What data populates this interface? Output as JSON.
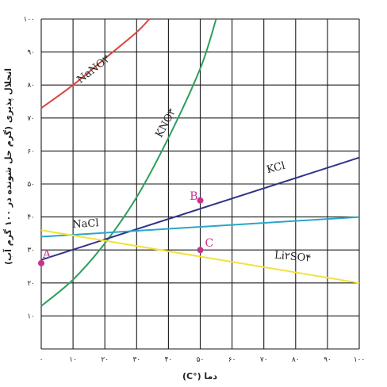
{
  "chart_data": {
    "type": "line",
    "xlabel": "دما (°C)",
    "ylabel": "انحلال پذیری (گرم حل شونده در ۱۰۰ گرم آب)",
    "xlim": [
      0,
      100
    ],
    "ylim": [
      0,
      100
    ],
    "x_ticks": [
      0,
      10,
      20,
      30,
      40,
      50,
      60,
      70,
      80,
      90,
      100
    ],
    "x_tick_labels": [
      "۰",
      "۱۰",
      "۲۰",
      "۳۰",
      "۴۰",
      "۵۰",
      "۶۰",
      "۷۰",
      "۸۰",
      "۹۰",
      "۱۰۰"
    ],
    "y_ticks": [
      10,
      20,
      30,
      40,
      50,
      60,
      70,
      80,
      90,
      100
    ],
    "y_tick_labels": [
      "۱۰",
      "۲۰",
      "۳۰",
      "۴۰",
      "۵۰",
      "۶۰",
      "۷۰",
      "۸۰",
      "۹۰",
      "۱۰۰"
    ],
    "grid": true,
    "series": [
      {
        "name": "NaNO۳",
        "color": "#d9463b",
        "x": [
          0,
          10,
          20,
          30,
          34
        ],
        "y": [
          73,
          80,
          88,
          96,
          100
        ],
        "label_at": [
          17,
          84
        ]
      },
      {
        "name": "KNO۳",
        "color": "#2e9e5b",
        "x": [
          0,
          10,
          20,
          30,
          40,
          50,
          55
        ],
        "y": [
          13,
          21,
          32,
          46,
          64,
          85,
          100
        ],
        "label_at": [
          40,
          68
        ]
      },
      {
        "name": "KCl",
        "color": "#2f3387",
        "x": [
          0,
          100
        ],
        "y": [
          27,
          58
        ],
        "label_at": [
          74,
          54
        ]
      },
      {
        "name": "NaCl",
        "color": "#2aa6c9",
        "x": [
          0,
          100
        ],
        "y": [
          34,
          40
        ],
        "label_at": [
          14,
          37
        ]
      },
      {
        "name": "Li۲SO۴",
        "color": "#f4e13a",
        "x": [
          0,
          100
        ],
        "y": [
          36,
          20
        ],
        "label_at": [
          79,
          27
        ]
      }
    ],
    "points": [
      {
        "label": "A",
        "x": 0,
        "y": 26,
        "color": "#c8338a"
      },
      {
        "label": "B",
        "x": 50,
        "y": 45,
        "color": "#c8338a"
      },
      {
        "label": "C",
        "x": 50,
        "y": 30,
        "color": "#c8338a"
      }
    ]
  }
}
